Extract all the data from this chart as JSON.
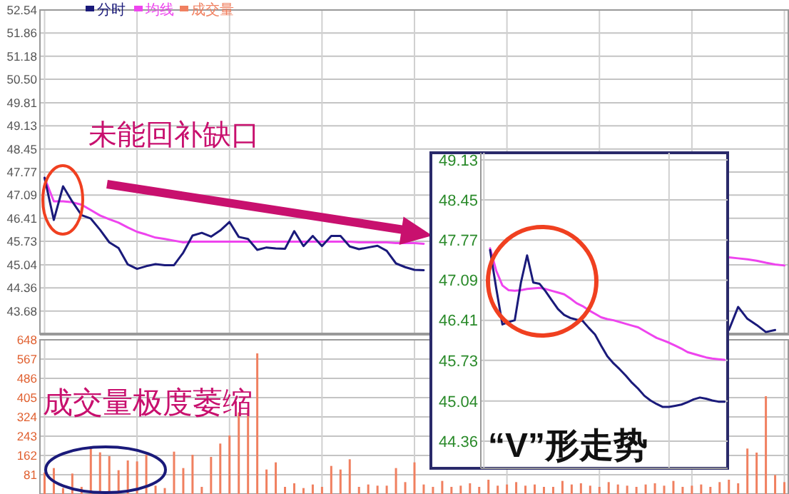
{
  "chart_data": [
    {
      "type": "line",
      "legend": "top left",
      "tick_labels": "y",
      "grid": true,
      "categories": [
        null,
        null,
        null,
        null,
        null,
        null,
        null,
        null,
        null,
        null,
        null,
        null,
        null,
        null,
        null,
        null,
        null,
        null,
        null,
        null,
        null,
        null,
        null,
        null,
        null,
        null,
        null,
        null,
        null,
        null,
        null,
        null,
        null,
        null,
        null,
        null,
        null,
        null,
        null,
        null,
        null,
        null,
        null,
        null,
        null,
        null,
        null,
        null,
        null,
        null,
        null,
        null,
        null,
        null,
        null,
        null,
        null,
        null,
        null,
        null,
        null,
        null,
        null,
        null,
        null,
        null,
        null,
        null,
        null,
        null,
        null,
        null,
        null,
        null,
        null,
        null,
        null,
        null,
        null,
        null,
        null
      ],
      "ylim": [
        43.0,
        52.54
      ],
      "yticks": [
        52.54,
        51.86,
        51.18,
        {
          "value": 50.5,
          "label": "50.50"
        },
        49.81,
        49.13,
        48.45,
        47.77,
        47.09,
        46.41,
        45.73,
        45.04,
        44.36,
        43.68
      ],
      "annotations": [
        "未能回补缺口"
      ],
      "series": [
        {
          "name": "分时",
          "color": "#1a1a7a",
          "values": [
            47.6,
            46.36,
            47.35,
            46.9,
            46.5,
            46.4,
            46.07,
            45.7,
            45.53,
            45.05,
            44.92,
            45.0,
            45.06,
            45.03,
            45.03,
            45.4,
            45.9,
            45.98,
            45.87,
            46.05,
            46.3,
            45.86,
            45.8,
            45.48,
            45.55,
            45.52,
            45.51,
            46.03,
            45.59,
            45.89,
            45.59,
            45.89,
            45.89,
            45.58,
            45.5,
            45.55,
            45.6,
            45.45,
            45.08,
            44.97,
            44.89,
            44.88,
            null,
            null,
            null,
            null,
            null,
            null,
            null,
            null,
            null,
            null,
            null,
            null,
            null,
            null,
            null,
            null,
            null,
            null,
            null,
            null,
            null,
            null,
            null,
            null,
            null,
            null,
            null,
            null,
            null,
            null,
            null,
            null,
            null,
            null,
            null,
            null,
            null,
            null,
            null
          ]
        },
        {
          "name": "均线",
          "color": "#ee44ee",
          "values": [
            47.6,
            46.91,
            46.91,
            46.88,
            46.81,
            46.65,
            46.49,
            46.38,
            46.28,
            46.14,
            46.01,
            45.93,
            45.84,
            45.8,
            45.75,
            45.7,
            45.72,
            45.72,
            45.72,
            45.72,
            45.72,
            45.72,
            45.72,
            45.72,
            45.72,
            45.72,
            45.72,
            45.72,
            45.72,
            45.72,
            45.72,
            45.72,
            45.72,
            45.72,
            45.7,
            45.7,
            45.7,
            45.7,
            45.68,
            45.68,
            45.68,
            45.66,
            null,
            null,
            null,
            null,
            null,
            null,
            null,
            null,
            null,
            null,
            null,
            null,
            null,
            null,
            null,
            null,
            null,
            null,
            null,
            null,
            null,
            null,
            null,
            null,
            null,
            null,
            null,
            null,
            null,
            null,
            null,
            null,
            null,
            null,
            null,
            null,
            null,
            null,
            null
          ]
        },
        {
          "color": "#1a1a7a",
          "values": [
            null,
            null,
            null,
            null,
            null,
            null,
            null,
            null,
            null,
            null,
            null,
            null,
            null,
            null,
            null,
            null,
            null,
            null,
            null,
            null,
            null,
            null,
            null,
            null,
            null,
            null,
            null,
            null,
            null,
            null,
            null,
            null,
            null,
            null,
            null,
            null,
            null,
            null,
            null,
            null,
            null,
            null,
            null,
            null,
            null,
            null,
            null,
            null,
            null,
            null,
            null,
            null,
            null,
            null,
            null,
            null,
            null,
            null,
            null,
            null,
            null,
            null,
            null,
            null,
            null,
            null,
            null,
            null,
            null,
            null,
            null,
            null,
            null,
            null,
            43.12,
            43.8,
            43.45,
            43.27,
            43.06,
            43.12,
            null
          ]
        },
        {
          "color": "#ee44ee",
          "values": [
            null,
            null,
            null,
            null,
            null,
            null,
            null,
            null,
            null,
            null,
            null,
            null,
            null,
            null,
            null,
            null,
            null,
            null,
            null,
            null,
            null,
            null,
            null,
            null,
            null,
            null,
            null,
            null,
            null,
            null,
            null,
            null,
            null,
            null,
            null,
            null,
            null,
            null,
            null,
            null,
            null,
            null,
            null,
            null,
            null,
            null,
            null,
            null,
            null,
            null,
            null,
            null,
            null,
            null,
            null,
            null,
            null,
            null,
            null,
            null,
            null,
            null,
            null,
            null,
            null,
            null,
            null,
            null,
            null,
            null,
            null,
            null,
            null,
            null,
            45.26,
            45.23,
            45.2,
            45.16,
            45.1,
            45.05,
            45.02
          ]
        }
      ]
    },
    {
      "type": "bar",
      "legend": "top left",
      "tick_labels": "y",
      "grid": true,
      "categories": [
        null,
        null,
        null,
        null,
        null,
        null,
        null,
        null,
        null,
        null,
        null,
        null,
        null,
        null,
        null,
        null,
        null,
        null,
        null,
        null,
        null,
        null,
        null,
        null,
        null,
        null,
        null,
        null,
        null,
        null,
        null,
        null,
        null,
        null,
        null,
        null,
        null,
        null,
        null,
        null,
        null,
        null,
        null,
        null,
        null,
        null,
        null,
        null,
        null,
        null,
        null,
        null,
        null,
        null,
        null,
        null,
        null,
        null,
        null,
        null,
        null,
        null,
        null,
        null,
        null,
        null,
        null,
        null,
        null,
        null,
        null,
        null,
        null,
        null,
        null,
        null,
        null,
        null,
        null,
        null,
        null
      ],
      "ylim": [
        0,
        648
      ],
      "yticks": [
        648,
        567,
        486,
        405,
        324,
        243,
        162,
        81
      ],
      "annotations": [
        "成交量极度萎缩"
      ],
      "series": [
        {
          "name": "成交量",
          "color": "#f08060",
          "values": [
            90,
            109,
            25,
            86,
            30,
            193,
            175,
            159,
            100,
            141,
            137,
            165,
            35,
            25,
            178,
            109,
            165,
            30,
            156,
            212,
            246,
            343,
            353,
            591,
            103,
            133,
            30,
            45,
            25,
            40,
            30,
            118,
            103,
            146,
            30,
            40,
            35,
            35,
            109,
            50,
            133,
            40,
            30,
            55,
            30,
            35,
            45,
            30,
            60,
            35,
            40,
            50,
            35,
            40,
            30,
            30,
            55,
            40,
            45,
            35,
            30,
            50,
            40,
            35,
            30,
            40,
            45,
            35,
            55,
            30,
            35,
            40,
            30,
            50,
            60,
            45,
            191,
            174,
            411,
            80,
            50
          ]
        }
      ]
    },
    {
      "type": "line",
      "tick_labels": "y",
      "grid": true,
      "categories": [
        null,
        null,
        null,
        null,
        null,
        null,
        null,
        null,
        null,
        null,
        null,
        null,
        null,
        null,
        null,
        null,
        null,
        null,
        null,
        null,
        null,
        null,
        null,
        null,
        null,
        null,
        null,
        null,
        null,
        null,
        null,
        null,
        null,
        null,
        null,
        null,
        null,
        null,
        null,
        null
      ],
      "ylim": [
        43.9,
        49.25
      ],
      "yticks": [
        49.13,
        48.45,
        47.77,
        47.09,
        46.41,
        45.73,
        45.04,
        44.36
      ],
      "annotations": [
        "“V”形走势"
      ],
      "series": [
        {
          "color": "#1a1a7a",
          "values": [
            null,
            47.6,
            46.95,
            46.34,
            46.38,
            46.41,
            47.05,
            47.51,
            47.05,
            47.03,
            46.9,
            46.75,
            46.6,
            46.5,
            46.45,
            46.42,
            46.4,
            46.28,
            46.17,
            45.98,
            45.8,
            45.68,
            45.58,
            45.47,
            45.35,
            45.25,
            45.13,
            45.05,
            44.99,
            44.94,
            44.94,
            44.96,
            44.98,
            45.02,
            45.07,
            45.1,
            45.08,
            45.05,
            45.03,
            45.03
          ]
        },
        {
          "color": "#ee44ee",
          "values": [
            null,
            47.63,
            47.25,
            47.0,
            46.92,
            46.91,
            46.92,
            46.94,
            46.95,
            46.96,
            46.94,
            46.91,
            46.88,
            46.85,
            46.78,
            46.7,
            46.65,
            46.58,
            46.52,
            46.46,
            46.43,
            46.41,
            46.38,
            46.35,
            46.32,
            46.29,
            46.23,
            46.17,
            46.11,
            46.07,
            46.03,
            45.98,
            45.93,
            45.87,
            45.84,
            45.81,
            45.78,
            45.76,
            45.75,
            45.74
          ]
        }
      ]
    }
  ]
}
